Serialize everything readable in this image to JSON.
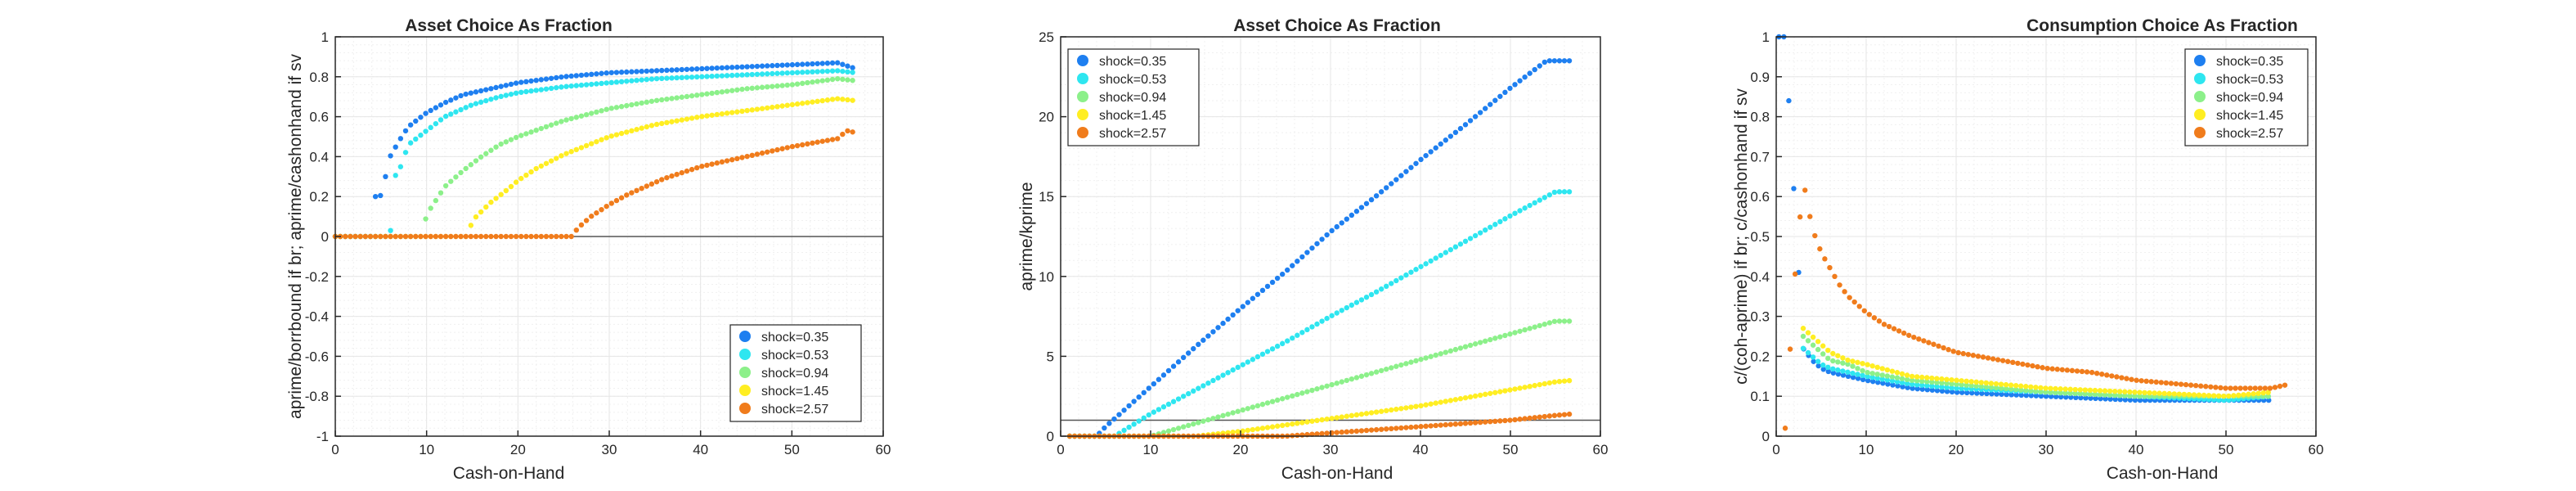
{
  "figure": {
    "background": "#ffffff"
  },
  "colors": {
    "shock_0_35": "#1e7ff0",
    "shock_0_53": "#2ee6f0",
    "shock_0_94": "#8cf08a",
    "shock_1_45": "#ffee22",
    "shock_2_57": "#f07c1c",
    "grid": "#e6e6e6",
    "axis": "#262626",
    "zero_line": "#555555"
  },
  "chart_data": [
    {
      "type": "scatter",
      "title": "Asset Choice As Fraction",
      "xlabel": "Cash-on-Hand",
      "ylabel": "aprime/borrbound if br; aprime/cashonhand if sv",
      "xlim": [
        0,
        60
      ],
      "ylim": [
        -1,
        1
      ],
      "xticks": [
        0,
        10,
        20,
        30,
        40,
        50,
        60
      ],
      "xtick_labels": [
        "0",
        "10",
        "20",
        "30",
        "40",
        "50",
        "60"
      ],
      "yticks": [
        -1,
        -0.8,
        -0.6,
        -0.4,
        -0.2,
        0,
        0.2,
        0.4,
        0.6,
        0.8,
        1
      ],
      "ytick_labels": [
        "-1",
        "-0.8",
        "-0.6",
        "-0.4",
        "-0.2",
        "0",
        "0.2",
        "0.4",
        "0.6",
        "0.8",
        "1"
      ],
      "grid": "on",
      "reference_line_y": 0,
      "legend_location": "bottom-right",
      "series": [
        {
          "name": "shock=0.35",
          "color_key": "shock_0_35",
          "x": [
            0,
            4,
            4.5,
            5,
            6,
            7,
            8,
            10,
            12,
            14,
            16,
            18,
            20,
            25,
            30,
            35,
            40,
            45,
            50,
            55,
            57
          ],
          "y": [
            0,
            0,
            0.25,
            0.2,
            0.4,
            0.48,
            0.55,
            0.62,
            0.67,
            0.71,
            0.73,
            0.75,
            0.77,
            0.8,
            0.82,
            0.83,
            0.84,
            0.85,
            0.86,
            0.87,
            0.84
          ]
        },
        {
          "name": "shock=0.53",
          "color_key": "shock_0_53",
          "x": [
            0,
            6,
            6.5,
            7,
            8,
            10,
            12,
            15,
            18,
            20,
            25,
            30,
            35,
            40,
            45,
            50,
            55,
            57
          ],
          "y": [
            0,
            0,
            0.3,
            0.33,
            0.46,
            0.53,
            0.6,
            0.66,
            0.7,
            0.72,
            0.75,
            0.77,
            0.79,
            0.8,
            0.81,
            0.82,
            0.83,
            0.82
          ]
        },
        {
          "name": "shock=0.94",
          "color_key": "shock_0_94",
          "x": [
            0,
            9.5,
            10,
            12,
            14,
            16,
            18,
            20,
            25,
            30,
            35,
            40,
            45,
            50,
            55,
            57
          ],
          "y": [
            0,
            0,
            0.11,
            0.25,
            0.33,
            0.4,
            0.46,
            0.5,
            0.58,
            0.64,
            0.68,
            0.71,
            0.74,
            0.76,
            0.79,
            0.78
          ]
        },
        {
          "name": "shock=1.45",
          "color_key": "shock_1_45",
          "x": [
            0,
            14.5,
            15,
            17,
            19,
            20,
            22,
            25,
            30,
            35,
            40,
            45,
            50,
            55,
            57
          ],
          "y": [
            0,
            0,
            0.08,
            0.17,
            0.24,
            0.28,
            0.34,
            0.41,
            0.5,
            0.56,
            0.6,
            0.63,
            0.66,
            0.69,
            0.68
          ]
        },
        {
          "name": "shock=2.57",
          "color_key": "shock_2_57",
          "x": [
            0,
            26,
            26.5,
            28,
            30,
            32,
            34,
            36,
            38,
            40,
            45,
            50,
            55,
            56,
            57
          ],
          "y": [
            0,
            0,
            0.04,
            0.1,
            0.16,
            0.21,
            0.25,
            0.29,
            0.32,
            0.35,
            0.4,
            0.45,
            0.49,
            0.53,
            0.52
          ]
        }
      ]
    },
    {
      "type": "scatter",
      "title": "Asset Choice As Fraction",
      "xlabel": "Cash-on-Hand",
      "ylabel": "aprime/kprime",
      "xlim": [
        0,
        60
      ],
      "ylim": [
        0,
        25
      ],
      "xticks": [
        0,
        10,
        20,
        30,
        40,
        50,
        60
      ],
      "xtick_labels": [
        "0",
        "10",
        "20",
        "30",
        "40",
        "50",
        "60"
      ],
      "yticks": [
        0,
        5,
        10,
        15,
        20,
        25
      ],
      "ytick_labels": [
        "0",
        "5",
        "10",
        "15",
        "20",
        "25"
      ],
      "grid": "on",
      "reference_line_y": 1,
      "legend_location": "top-left",
      "series": [
        {
          "name": "shock=0.35",
          "color_key": "shock_0_35",
          "x": [
            1,
            4,
            5,
            10,
            15,
            20,
            25,
            30,
            35,
            40,
            45,
            50,
            54,
            55,
            57
          ],
          "y": [
            0,
            0,
            0.6,
            3.1,
            5.6,
            8,
            10.3,
            12.8,
            15,
            17.3,
            19.5,
            21.8,
            23.5,
            23.5,
            23.5
          ]
        },
        {
          "name": "shock=0.53",
          "color_key": "shock_0_53",
          "x": [
            1,
            6,
            10,
            15,
            20,
            25,
            30,
            35,
            40,
            45,
            50,
            54,
            55,
            57
          ],
          "y": [
            0,
            0,
            1.4,
            2.9,
            4.4,
            5.9,
            7.5,
            9,
            10.6,
            12.2,
            13.8,
            15,
            15.3,
            15.3
          ]
        },
        {
          "name": "shock=0.94",
          "color_key": "shock_0_94",
          "x": [
            1,
            10,
            15,
            20,
            25,
            30,
            35,
            40,
            45,
            50,
            55,
            57
          ],
          "y": [
            0,
            0,
            0.8,
            1.6,
            2.4,
            3.2,
            4,
            4.8,
            5.6,
            6.4,
            7.2,
            7.2
          ]
        },
        {
          "name": "shock=1.45",
          "color_key": "shock_1_45",
          "x": [
            1,
            15,
            20,
            25,
            30,
            35,
            40,
            45,
            50,
            55,
            57
          ],
          "y": [
            0,
            0,
            0.3,
            0.7,
            1.1,
            1.5,
            1.9,
            2.4,
            2.9,
            3.4,
            3.5
          ]
        },
        {
          "name": "shock=2.57",
          "color_key": "shock_2_57",
          "x": [
            1,
            25,
            30,
            35,
            40,
            45,
            50,
            55,
            57
          ],
          "y": [
            0,
            0,
            0.2,
            0.4,
            0.6,
            0.8,
            1.0,
            1.3,
            1.4
          ]
        }
      ]
    },
    {
      "type": "scatter",
      "title": "Consumption Choice As Fraction",
      "xlabel": "Cash-on-Hand",
      "ylabel": "c/(coh-aprime) if br; c/cashonhand if sv",
      "xlim": [
        0,
        60
      ],
      "ylim": [
        0,
        1
      ],
      "xticks": [
        0,
        10,
        20,
        30,
        40,
        50,
        60
      ],
      "xtick_labels": [
        "0",
        "10",
        "20",
        "30",
        "40",
        "50",
        "60"
      ],
      "yticks": [
        0,
        0.1,
        0.2,
        0.3,
        0.4,
        0.5,
        0.6,
        0.7,
        0.8,
        0.9,
        1
      ],
      "ytick_labels": [
        "0",
        "0.1",
        "0.2",
        "0.3",
        "0.4",
        "0.5",
        "0.6",
        "0.7",
        "0.8",
        "0.9",
        "1"
      ],
      "grid": "on",
      "legend_location": "top-right",
      "series": [
        {
          "name": "shock=0.35",
          "color_key": "shock_0_35",
          "x": [
            0.3,
            1,
            2,
            3,
            4,
            5,
            6,
            8,
            10,
            15,
            20,
            30,
            40,
            50,
            55
          ],
          "y": [
            1,
            1,
            0.6,
            0.22,
            0.19,
            0.17,
            0.16,
            0.15,
            0.14,
            0.12,
            0.11,
            0.1,
            0.09,
            0.09,
            0.09
          ]
        },
        {
          "name": "shock=0.53",
          "color_key": "shock_0_53",
          "x": [
            3,
            4,
            5,
            6,
            8,
            10,
            15,
            20,
            30,
            40,
            50,
            55
          ],
          "y": [
            0.22,
            0.2,
            0.18,
            0.17,
            0.16,
            0.15,
            0.13,
            0.12,
            0.11,
            0.1,
            0.09,
            0.1
          ]
        },
        {
          "name": "shock=0.94",
          "color_key": "shock_0_94",
          "x": [
            3,
            4,
            5,
            6,
            8,
            10,
            15,
            20,
            30,
            40,
            50,
            55
          ],
          "y": [
            0.25,
            0.23,
            0.21,
            0.19,
            0.18,
            0.16,
            0.14,
            0.13,
            0.11,
            0.1,
            0.1,
            0.1
          ]
        },
        {
          "name": "shock=1.45",
          "color_key": "shock_1_45",
          "x": [
            3,
            4,
            5,
            6,
            8,
            10,
            15,
            20,
            30,
            40,
            50,
            55
          ],
          "y": [
            0.27,
            0.25,
            0.23,
            0.21,
            0.19,
            0.18,
            0.15,
            0.14,
            0.12,
            0.11,
            0.1,
            0.11
          ]
        },
        {
          "name": "shock=2.57",
          "color_key": "shock_2_57",
          "x": [
            1,
            2,
            3,
            4,
            5,
            6,
            7,
            8,
            10,
            12,
            15,
            20,
            25,
            30,
            35,
            40,
            45,
            50,
            55,
            57
          ],
          "y": [
            0.02,
            0.38,
            0.64,
            0.52,
            0.46,
            0.42,
            0.38,
            0.35,
            0.31,
            0.28,
            0.25,
            0.21,
            0.19,
            0.17,
            0.16,
            0.14,
            0.13,
            0.12,
            0.12,
            0.13
          ]
        }
      ]
    }
  ]
}
